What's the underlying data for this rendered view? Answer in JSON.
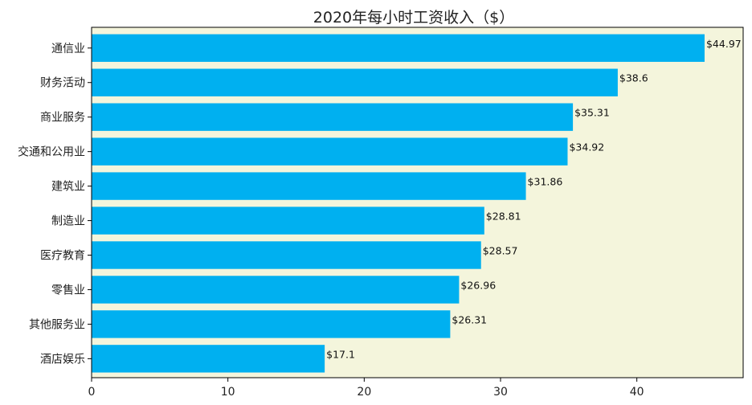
{
  "chart_data": {
    "type": "bar",
    "orientation": "horizontal",
    "title": "2020年每小时工资收入（$）",
    "xlabel": "",
    "ylabel": "",
    "categories": [
      "通信业",
      "财务活动",
      "商业服务",
      "交通和公用业",
      "建筑业",
      "制造业",
      "医疗教育",
      "零售业",
      "其他服务业",
      "酒店娱乐"
    ],
    "values": [
      44.97,
      38.6,
      35.31,
      34.92,
      31.86,
      28.81,
      28.57,
      26.96,
      26.31,
      17.1
    ],
    "data_labels": [
      "$44.97",
      "$38.6",
      "$35.31",
      "$34.92",
      "$31.86",
      "$28.81",
      "$28.57",
      "$26.96",
      "$26.31",
      "$17.1"
    ],
    "xlim": [
      0,
      47.8
    ],
    "xticks": [
      0,
      10,
      20,
      30,
      40
    ],
    "grid": false,
    "bar_color": "#00b0f0",
    "plot_background": "#f4f5dc"
  }
}
